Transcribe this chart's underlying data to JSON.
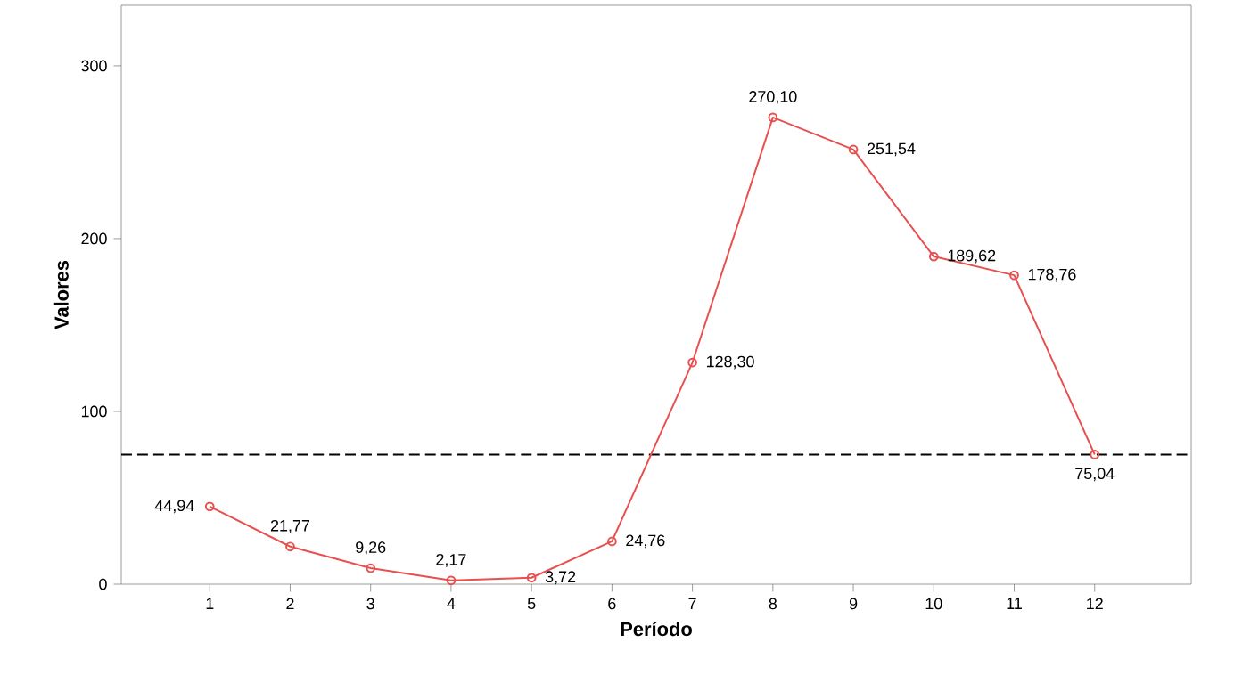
{
  "chart_data": {
    "type": "line",
    "xlabel": "Período",
    "ylabel": "Valores",
    "categories": [
      "1",
      "2",
      "3",
      "4",
      "5",
      "6",
      "7",
      "8",
      "9",
      "10",
      "11",
      "12"
    ],
    "values": [
      44.94,
      21.77,
      9.26,
      2.17,
      3.72,
      24.76,
      128.3,
      270.1,
      251.54,
      189.62,
      178.76,
      75.04
    ],
    "value_labels": [
      "44,94",
      "21,77",
      "9,26",
      "2,17",
      "3,72",
      "24,76",
      "128,30",
      "270,10",
      "251,54",
      "189,62",
      "178,76",
      "75,04"
    ],
    "color": "#e8504f",
    "marker": "circle",
    "line_style": "solid",
    "ylim": [
      0,
      335
    ],
    "yticks": [
      0,
      100,
      200,
      300
    ],
    "grid": false,
    "ref_lines": [
      {
        "axis": "y",
        "value": 75,
        "color": "#000000",
        "line_style": "dashed"
      }
    ]
  }
}
